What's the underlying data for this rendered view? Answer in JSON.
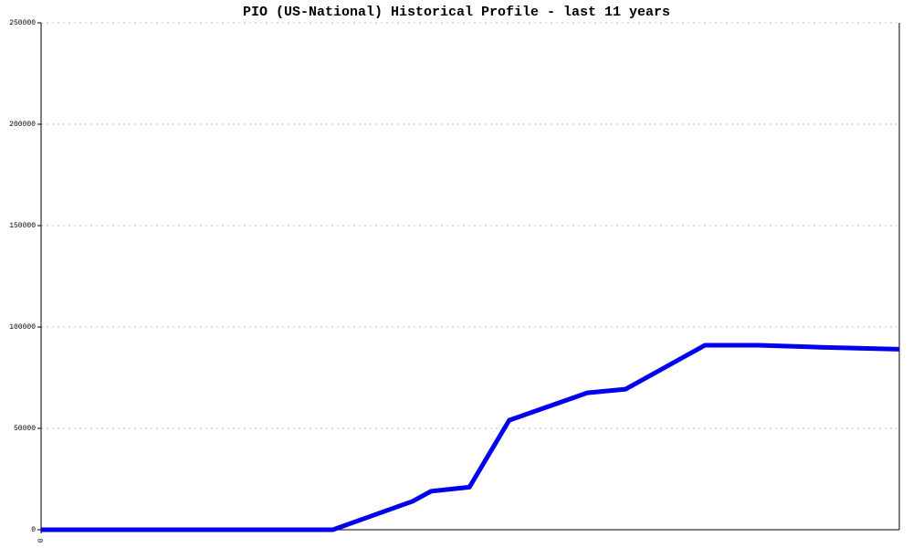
{
  "chart_data": {
    "type": "line",
    "title": "PIO (US-National) Historical Profile - last 11 years",
    "x": [
      0,
      3.74,
      4.76,
      5.0,
      5.49,
      6.0,
      7.0,
      7.49,
      8.51,
      9.19,
      10.0,
      11.0
    ],
    "series": [
      {
        "color": "#0000ee",
        "values": [
          0,
          0,
          14000,
          19000,
          21000,
          54000,
          67500,
          69300,
          91000,
          91000,
          90000,
          89000
        ]
      }
    ],
    "xlim": [
      0,
      11
    ],
    "xticks": [
      0
    ],
    "ylim": [
      0,
      250000
    ],
    "yticks": [
      0,
      50000,
      100000,
      150000,
      200000,
      250000
    ],
    "grid": true
  }
}
